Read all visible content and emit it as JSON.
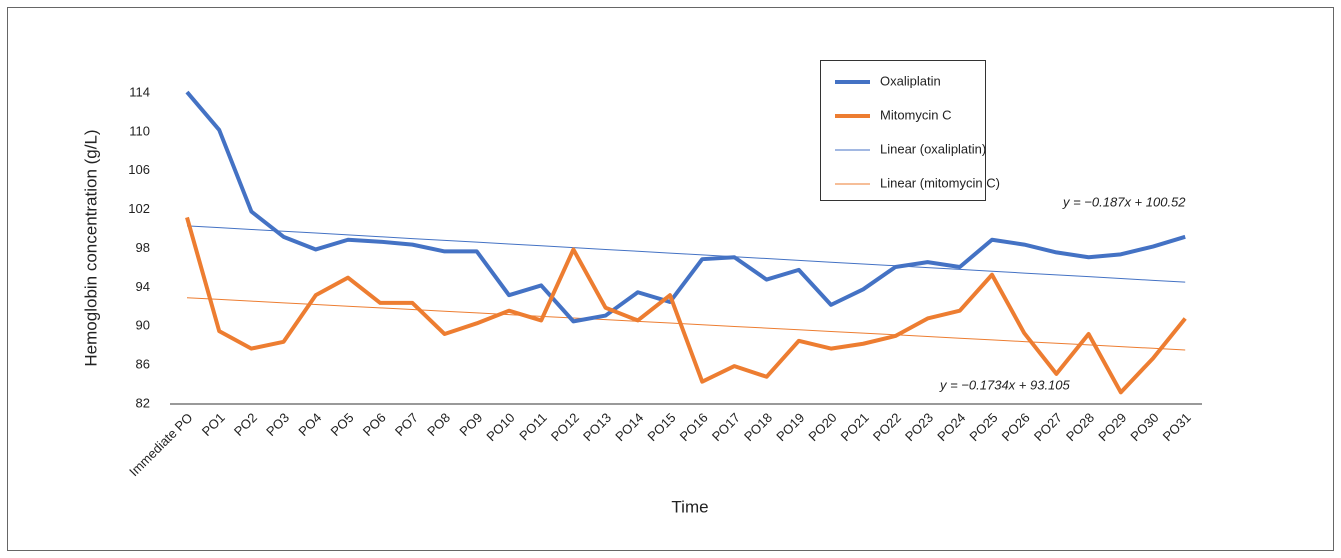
{
  "chart_data": {
    "type": "line",
    "y_label": "Hemoglobin concentration (g/L)",
    "x_label": "Time",
    "categories": [
      "Immediate PO",
      "PO1",
      "PO2",
      "PO3",
      "PO4",
      "PO5",
      "PO6",
      "PO7",
      "PO8",
      "PO9",
      "PO10",
      "PO11",
      "PO12",
      "PO13",
      "PO14",
      "PO15",
      "PO16",
      "PO17",
      "PO18",
      "PO19",
      "PO20",
      "PO21",
      "PO22",
      "PO23",
      "PO24",
      "PO25",
      "PO26",
      "PO27",
      "PO28",
      "PO29",
      "PO30",
      "PO31"
    ],
    "series": [
      {
        "name": "Oxaliplatin",
        "color": "#4472c4",
        "line_width": 4,
        "values": [
          114.1,
          110.2,
          101.8,
          99.2,
          97.9,
          98.9,
          98.7,
          98.4,
          97.7,
          97.7,
          93.2,
          94.2,
          90.5,
          91.1,
          93.5,
          92.5,
          96.9,
          97.1,
          94.8,
          95.8,
          92.2,
          93.8,
          96.1,
          96.6,
          96.1,
          98.9,
          98.4,
          97.6,
          97.1,
          97.4,
          98.2,
          99.2
        ]
      },
      {
        "name": "Mitomycin C",
        "color": "#ed7d31",
        "line_width": 4,
        "values": [
          101.2,
          89.5,
          87.7,
          88.4,
          93.2,
          95.0,
          92.4,
          92.4,
          89.2,
          90.3,
          91.6,
          90.6,
          97.9,
          91.9,
          90.6,
          93.2,
          84.3,
          85.9,
          84.8,
          88.5,
          87.7,
          88.2,
          89.0,
          90.8,
          91.6,
          95.3,
          89.3,
          85.1,
          89.2,
          83.2,
          86.7,
          90.8
        ]
      },
      {
        "name": "Linear (oxaliplatin)",
        "color": "#4472c4",
        "line_width": 1,
        "values": [
          100.33,
          100.15,
          99.96,
          99.77,
          99.59,
          99.4,
          99.21,
          99.02,
          98.84,
          98.65,
          98.46,
          98.28,
          98.09,
          97.9,
          97.72,
          97.53,
          97.34,
          97.15,
          96.97,
          96.78,
          96.59,
          96.41,
          96.22,
          96.03,
          95.85,
          95.66,
          95.47,
          95.28,
          95.1,
          94.91,
          94.72,
          94.54
        ]
      },
      {
        "name": "Linear (mitomycin C)",
        "color": "#ed7d31",
        "line_width": 1,
        "values": [
          92.93,
          92.76,
          92.58,
          92.41,
          92.24,
          92.06,
          91.89,
          91.72,
          91.54,
          91.37,
          91.2,
          91.02,
          90.85,
          90.68,
          90.5,
          90.33,
          90.16,
          89.98,
          89.81,
          89.64,
          89.46,
          89.29,
          89.12,
          88.94,
          88.77,
          88.6,
          88.42,
          88.25,
          88.08,
          87.9,
          87.73,
          87.56
        ]
      }
    ],
    "annotations": [
      "y = −0.187x + 100.52",
      "y = −0.1734x + 93.105"
    ],
    "ylim": [
      82,
      114
    ],
    "yticks": [
      82,
      86,
      90,
      94,
      98,
      102,
      106,
      110,
      114
    ],
    "grid": false,
    "legend": "top"
  }
}
